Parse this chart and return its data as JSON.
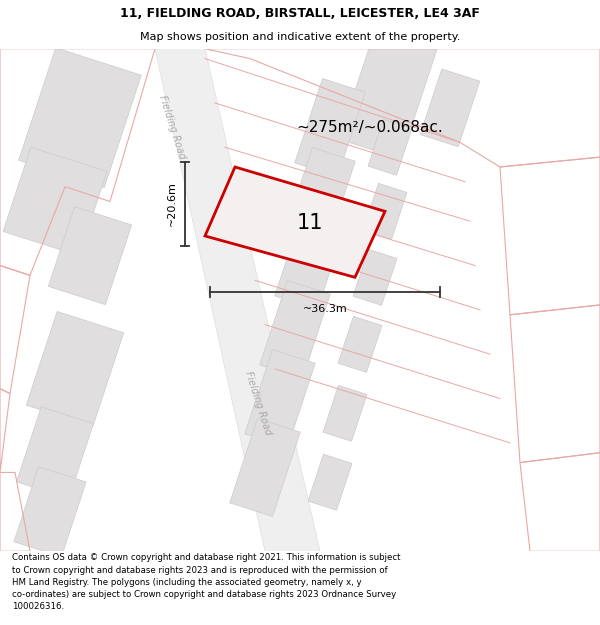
{
  "title_line1": "11, FIELDING ROAD, BIRSTALL, LEICESTER, LE4 3AF",
  "title_line2": "Map shows position and indicative extent of the property.",
  "footer_text": "Contains OS data © Crown copyright and database right 2021. This information is subject\nto Crown copyright and database rights 2023 and is reproduced with the permission of\nHM Land Registry. The polygons (including the associated geometry, namely x, y\nco-ordinates) are subject to Crown copyright and database rights 2023 Ordnance Survey\n100026316.",
  "area_label": "~275m²/~0.068ac.",
  "number_label": "11",
  "dim_width": "~36.3m",
  "dim_height": "~20.6m",
  "road_label_top": "Fielding Road",
  "road_label_bottom": "Fielding Road",
  "bg_color": "#ffffff",
  "map_bg": "#f8f6f6",
  "road_fill": "#f0efef",
  "road_edge": "#e0dddd",
  "building_fill": "#e0dede",
  "building_edge": "#cccccc",
  "lot_line": "#e8a8a8",
  "plot_edge": "#cc0000",
  "dim_color": "#333333",
  "text_gray": "#aaaaaa",
  "title_fs": 9,
  "subtitle_fs": 8,
  "footer_fs": 6.2,
  "area_fs": 11,
  "num_fs": 15,
  "dim_fs": 8,
  "road_fs": 7
}
